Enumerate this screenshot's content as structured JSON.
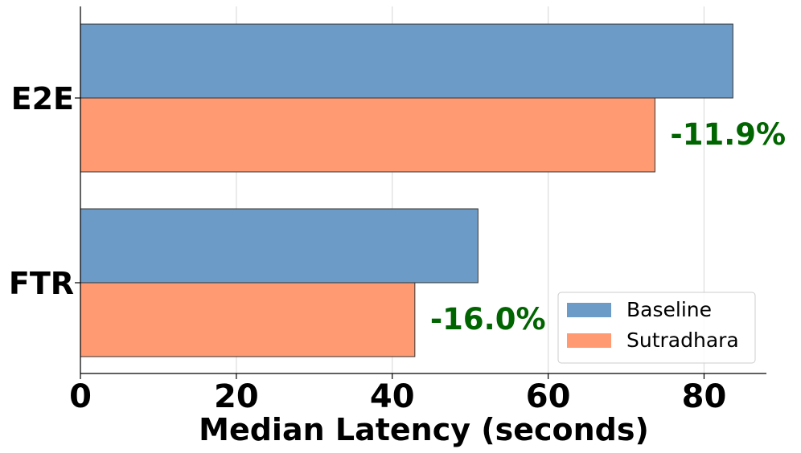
{
  "chart_data": {
    "type": "bar",
    "orientation": "horizontal",
    "categories": [
      "E2E",
      "FTR"
    ],
    "series": [
      {
        "name": "Baseline",
        "values": [
          83.7,
          51.0
        ],
        "color": "#6b9bc6"
      },
      {
        "name": "Sutradhara",
        "values": [
          73.7,
          42.9
        ],
        "color": "#ff9a72"
      }
    ],
    "annotations": [
      {
        "category": "E2E",
        "text": "-11.9%"
      },
      {
        "category": "FTR",
        "text": "-16.0%"
      }
    ],
    "annotation_color": "#006400",
    "xlabel": "Median Latency (seconds)",
    "ylabel": "",
    "xlim": [
      0,
      88
    ],
    "xticks": [
      0,
      20,
      40,
      60,
      80
    ],
    "xtick_labels": [
      "0",
      "20",
      "40",
      "60",
      "80"
    ],
    "grid": "x",
    "legend_placement": "lower-right"
  }
}
